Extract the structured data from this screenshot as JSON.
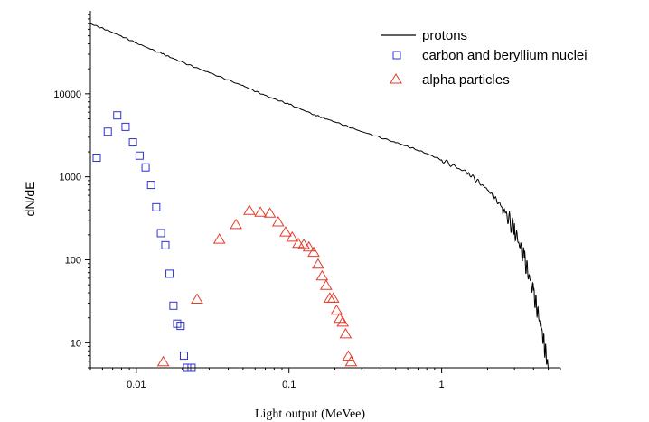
{
  "chart_data": {
    "type": "scatter",
    "xlabel": "Light output (MeVee)",
    "ylabel": "dN/dE",
    "xscale": "log",
    "yscale": "log",
    "xlim": [
      0.005,
      6
    ],
    "ylim": [
      5,
      100000
    ],
    "xticks": [
      {
        "value": 0.01,
        "label": "0.01"
      },
      {
        "value": 0.1,
        "label": "0.1"
      },
      {
        "value": 1,
        "label": "1"
      }
    ],
    "yticks": [
      {
        "value": 10,
        "label": "10"
      },
      {
        "value": 100,
        "label": "100"
      },
      {
        "value": 1000,
        "label": "1000"
      },
      {
        "value": 10000,
        "label": "10000"
      }
    ],
    "legend_position": "top-right",
    "series": [
      {
        "name": "protons",
        "kind": "line",
        "color": "#000000",
        "x": [
          0.005,
          0.007,
          0.01,
          0.015,
          0.02,
          0.03,
          0.05,
          0.07,
          0.1,
          0.15,
          0.2,
          0.3,
          0.5,
          0.7,
          1.0,
          1.5,
          2.0,
          2.5,
          3.0,
          3.5,
          4.0,
          4.5,
          5.0
        ],
        "y": [
          70000,
          55000,
          41000,
          30000,
          24000,
          18000,
          12500,
          9500,
          7500,
          5500,
          4600,
          3500,
          2600,
          2100,
          1600,
          1100,
          700,
          430,
          230,
          100,
          40,
          15,
          5
        ]
      },
      {
        "name": "carbon and beryllium nuclei",
        "kind": "marker",
        "marker": "square",
        "color": "#2f33c9",
        "x": [
          0.0055,
          0.0065,
          0.0075,
          0.0085,
          0.0095,
          0.0105,
          0.0115,
          0.0125,
          0.0135,
          0.0145,
          0.0155,
          0.0165,
          0.0175,
          0.0185,
          0.0195,
          0.0205,
          0.0215,
          0.023
        ],
        "y": [
          1700,
          3500,
          5500,
          4000,
          2600,
          1800,
          1300,
          800,
          430,
          210,
          150,
          68,
          28,
          17,
          16,
          7,
          5,
          5
        ]
      },
      {
        "name": "alpha particles",
        "kind": "marker",
        "marker": "triangle",
        "color": "#e23b2b",
        "x": [
          0.015,
          0.025,
          0.035,
          0.045,
          0.055,
          0.065,
          0.075,
          0.085,
          0.095,
          0.105,
          0.115,
          0.125,
          0.135,
          0.145,
          0.155,
          0.165,
          0.175,
          0.185,
          0.195,
          0.205,
          0.215,
          0.225,
          0.235,
          0.245,
          0.255
        ],
        "y": [
          6,
          34,
          180,
          270,
          400,
          380,
          370,
          290,
          220,
          190,
          160,
          155,
          145,
          125,
          90,
          65,
          50,
          35,
          35,
          25,
          20,
          18,
          13,
          7,
          6
        ]
      }
    ]
  }
}
